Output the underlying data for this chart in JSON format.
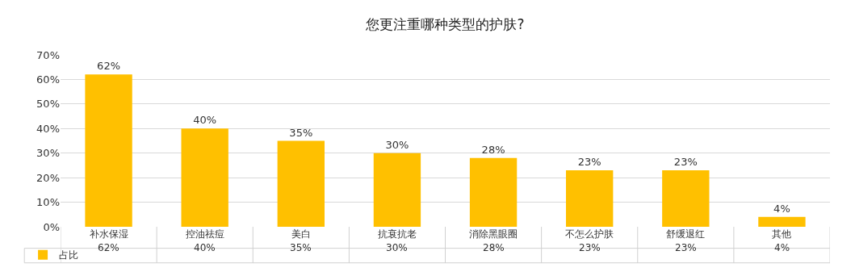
{
  "chart_data": {
    "type": "bar",
    "title": "您更注重哪种类型的护肤?",
    "categories": [
      "补水保湿",
      "控油祛痘",
      "美白",
      "抗衰抗老",
      "消除黑眼圈",
      "不怎么护肤",
      "舒缓退红",
      "其他"
    ],
    "series": [
      {
        "name": "占比",
        "color": "#ffc000",
        "values": [
          62,
          40,
          35,
          30,
          28,
          23,
          23,
          4
        ],
        "value_labels": [
          "62%",
          "40%",
          "35%",
          "30%",
          "28%",
          "23%",
          "23%",
          "4%"
        ]
      }
    ],
    "ylim": [
      0,
      70
    ],
    "yticks": [
      {
        "value": 0,
        "label": "0%"
      },
      {
        "value": 10,
        "label": "10%"
      },
      {
        "value": 20,
        "label": "20%"
      },
      {
        "value": 30,
        "label": "30%"
      },
      {
        "value": 40,
        "label": "40%"
      },
      {
        "value": 50,
        "label": "50%"
      },
      {
        "value": 60,
        "label": "60%"
      },
      {
        "value": 70,
        "label": "70%"
      }
    ],
    "grid": "y",
    "legend": "bottom left"
  }
}
